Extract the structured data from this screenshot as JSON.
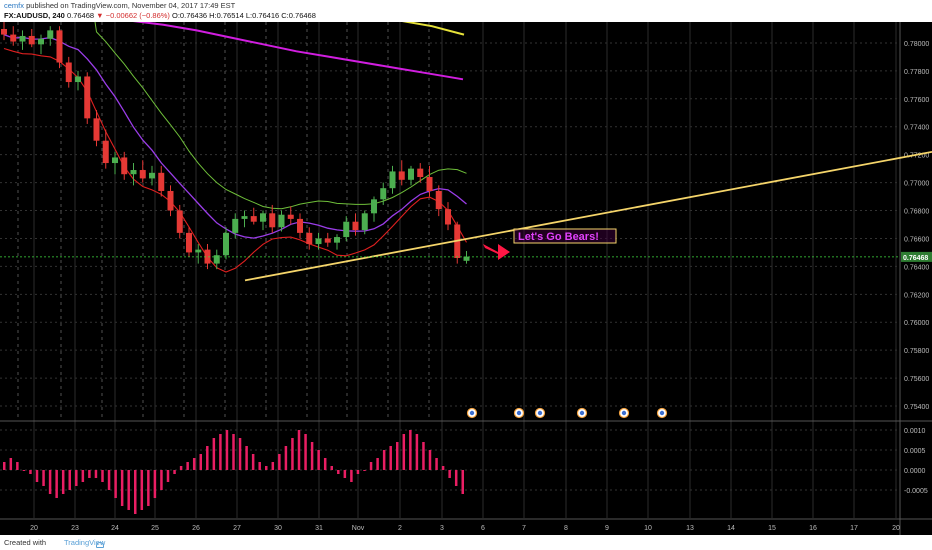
{
  "header": {
    "publisher": "cemfx",
    "published_text": " published on TradingView.com, November 04, 2017 17:49 EST",
    "symbol": "FX:AUDUSD, 240",
    "last": "0.76468",
    "arrow": "▼",
    "change": "−0.00662 (−0.86%)",
    "ohlc": "O:0.76436  H:0.76514  L:0.76416  C:0.76468"
  },
  "footer": {
    "created": "Created with",
    "brand": "TradingView"
  },
  "colors": {
    "background": "#000000",
    "grid": "#333333",
    "up_candle": "#4caf50",
    "down_candle": "#e53935",
    "trendline": "#f5d56a",
    "annotation": "#e040fb",
    "arrow": "#ff1744",
    "ma_magenta": "#d11ee0",
    "ma_yellow": "#e6e23a",
    "ma_purple": "#9a3de8",
    "ma_green": "#6fbf3a",
    "band_red": "#e02020",
    "histogram": "#e91e63",
    "price_line": "#3fdc3f"
  },
  "annotation_text": "Let's Go Bears!",
  "chart_data": {
    "type": "candlestick",
    "symbol": "FX:AUDUSD",
    "timeframe": "240",
    "current_price": 0.76468,
    "ylim": [
      0.753,
      0.7815
    ],
    "y_ticks": [
      "0.78000",
      "0.77800",
      "0.77600",
      "0.77400",
      "0.77200",
      "0.77000",
      "0.76800",
      "0.76600",
      "0.76400",
      "0.76200",
      "0.76000",
      "0.75800",
      "0.75600",
      "0.75400"
    ],
    "x_ticks": [
      "20",
      "23",
      "24",
      "25",
      "26",
      "27",
      "30",
      "31",
      "Nov",
      "2",
      "3",
      "6",
      "7",
      "8",
      "9",
      "10",
      "13",
      "14",
      "15",
      "16",
      "17",
      "20"
    ],
    "candles": [
      {
        "o": 0.781,
        "h": 0.7815,
        "l": 0.7802,
        "c": 0.7806
      },
      {
        "o": 0.7806,
        "h": 0.7812,
        "l": 0.7798,
        "c": 0.7801
      },
      {
        "o": 0.7801,
        "h": 0.7809,
        "l": 0.7795,
        "c": 0.7805
      },
      {
        "o": 0.7805,
        "h": 0.781,
        "l": 0.7797,
        "c": 0.7799
      },
      {
        "o": 0.7799,
        "h": 0.7806,
        "l": 0.7792,
        "c": 0.7803
      },
      {
        "o": 0.7803,
        "h": 0.7812,
        "l": 0.7798,
        "c": 0.7809
      },
      {
        "o": 0.7809,
        "h": 0.7812,
        "l": 0.7782,
        "c": 0.7786
      },
      {
        "o": 0.7786,
        "h": 0.779,
        "l": 0.7768,
        "c": 0.7772
      },
      {
        "o": 0.7772,
        "h": 0.778,
        "l": 0.7766,
        "c": 0.7776
      },
      {
        "o": 0.7776,
        "h": 0.7779,
        "l": 0.7742,
        "c": 0.7746
      },
      {
        "o": 0.7746,
        "h": 0.7752,
        "l": 0.7726,
        "c": 0.773
      },
      {
        "o": 0.773,
        "h": 0.7738,
        "l": 0.771,
        "c": 0.7714
      },
      {
        "o": 0.7714,
        "h": 0.7722,
        "l": 0.7706,
        "c": 0.7718
      },
      {
        "o": 0.7718,
        "h": 0.7722,
        "l": 0.7702,
        "c": 0.7706
      },
      {
        "o": 0.7706,
        "h": 0.7714,
        "l": 0.7698,
        "c": 0.7709
      },
      {
        "o": 0.7709,
        "h": 0.7716,
        "l": 0.77,
        "c": 0.7703
      },
      {
        "o": 0.7703,
        "h": 0.7712,
        "l": 0.7698,
        "c": 0.7707
      },
      {
        "o": 0.7707,
        "h": 0.7712,
        "l": 0.769,
        "c": 0.7694
      },
      {
        "o": 0.7694,
        "h": 0.7698,
        "l": 0.7676,
        "c": 0.768
      },
      {
        "o": 0.768,
        "h": 0.7684,
        "l": 0.766,
        "c": 0.7664
      },
      {
        "o": 0.7664,
        "h": 0.7668,
        "l": 0.7647,
        "c": 0.765
      },
      {
        "o": 0.765,
        "h": 0.7656,
        "l": 0.7642,
        "c": 0.7652
      },
      {
        "o": 0.7652,
        "h": 0.7656,
        "l": 0.7638,
        "c": 0.7642
      },
      {
        "o": 0.7642,
        "h": 0.7652,
        "l": 0.7638,
        "c": 0.7648
      },
      {
        "o": 0.7648,
        "h": 0.7668,
        "l": 0.7645,
        "c": 0.7664
      },
      {
        "o": 0.7664,
        "h": 0.7678,
        "l": 0.766,
        "c": 0.7674
      },
      {
        "o": 0.7674,
        "h": 0.768,
        "l": 0.7668,
        "c": 0.7676
      },
      {
        "o": 0.7676,
        "h": 0.7682,
        "l": 0.767,
        "c": 0.7672
      },
      {
        "o": 0.7672,
        "h": 0.768,
        "l": 0.7666,
        "c": 0.7678
      },
      {
        "o": 0.7678,
        "h": 0.7684,
        "l": 0.7664,
        "c": 0.7668
      },
      {
        "o": 0.7668,
        "h": 0.768,
        "l": 0.7665,
        "c": 0.7677
      },
      {
        "o": 0.7677,
        "h": 0.7683,
        "l": 0.767,
        "c": 0.7674
      },
      {
        "o": 0.7674,
        "h": 0.7678,
        "l": 0.766,
        "c": 0.7664
      },
      {
        "o": 0.7664,
        "h": 0.7668,
        "l": 0.7652,
        "c": 0.7656
      },
      {
        "o": 0.7656,
        "h": 0.7664,
        "l": 0.7652,
        "c": 0.766
      },
      {
        "o": 0.766,
        "h": 0.7664,
        "l": 0.7654,
        "c": 0.7657
      },
      {
        "o": 0.7657,
        "h": 0.7663,
        "l": 0.7652,
        "c": 0.7661
      },
      {
        "o": 0.7661,
        "h": 0.7676,
        "l": 0.7658,
        "c": 0.7672
      },
      {
        "o": 0.7672,
        "h": 0.7678,
        "l": 0.7662,
        "c": 0.7666
      },
      {
        "o": 0.7666,
        "h": 0.768,
        "l": 0.7663,
        "c": 0.7678
      },
      {
        "o": 0.7678,
        "h": 0.769,
        "l": 0.7672,
        "c": 0.7688
      },
      {
        "o": 0.7688,
        "h": 0.77,
        "l": 0.7684,
        "c": 0.7696
      },
      {
        "o": 0.7696,
        "h": 0.7712,
        "l": 0.7692,
        "c": 0.7708
      },
      {
        "o": 0.7708,
        "h": 0.7716,
        "l": 0.7698,
        "c": 0.7702
      },
      {
        "o": 0.7702,
        "h": 0.7712,
        "l": 0.7698,
        "c": 0.771
      },
      {
        "o": 0.771,
        "h": 0.7714,
        "l": 0.77,
        "c": 0.7704
      },
      {
        "o": 0.7704,
        "h": 0.7712,
        "l": 0.769,
        "c": 0.7694
      },
      {
        "o": 0.7694,
        "h": 0.7698,
        "l": 0.7676,
        "c": 0.7681
      },
      {
        "o": 0.7681,
        "h": 0.7686,
        "l": 0.7666,
        "c": 0.767
      },
      {
        "o": 0.767,
        "h": 0.7672,
        "l": 0.7642,
        "c": 0.7646
      },
      {
        "o": 0.7644,
        "h": 0.7651,
        "l": 0.7642,
        "c": 0.7647
      }
    ],
    "indicators": {
      "magenta_ma": [
        0.7816,
        0.7813,
        0.7809,
        0.7804,
        0.7799,
        0.7794,
        0.779,
        0.7786,
        0.7782,
        0.7778,
        0.7774
      ],
      "yellow_ma": [
        0.7816,
        0.7812,
        0.7806
      ]
    },
    "trendline": {
      "from": {
        "bar": 12,
        "price": 0.763
      },
      "to": {
        "bar": 80,
        "price": 0.7722
      }
    },
    "histogram": {
      "ylim": [
        -0.0012,
        0.0012
      ],
      "y_ticks": [
        "0.0010",
        "0.0005",
        "0.0000",
        "-0.0005"
      ],
      "values": [
        0.0002,
        0.0003,
        0.0002,
        0.0,
        -0.0001,
        -0.0003,
        -0.0004,
        -0.0006,
        -0.0007,
        -0.0006,
        -0.0005,
        -0.0004,
        -0.0003,
        -0.0002,
        -0.0002,
        -0.0003,
        -0.0005,
        -0.0007,
        -0.0009,
        -0.001,
        -0.0011,
        -0.001,
        -0.0009,
        -0.0007,
        -0.0005,
        -0.0003,
        -0.0001,
        0.0001,
        0.0002,
        0.0003,
        0.0004,
        0.0006,
        0.0008,
        0.0009,
        0.001,
        0.0009,
        0.0008,
        0.0006,
        0.0004,
        0.0002,
        0.0001,
        0.0002,
        0.0004,
        0.0006,
        0.0008,
        0.001,
        0.0009,
        0.0007,
        0.0005,
        0.0003,
        0.0001,
        -0.0001,
        -0.0002,
        -0.0003,
        -0.0001,
        0.0,
        0.0002,
        0.0003,
        0.0005,
        0.0006,
        0.0007,
        0.0009,
        0.001,
        0.0009,
        0.0007,
        0.0005,
        0.0003,
        0.0001,
        -0.0002,
        -0.0004,
        -0.0006
      ]
    }
  }
}
